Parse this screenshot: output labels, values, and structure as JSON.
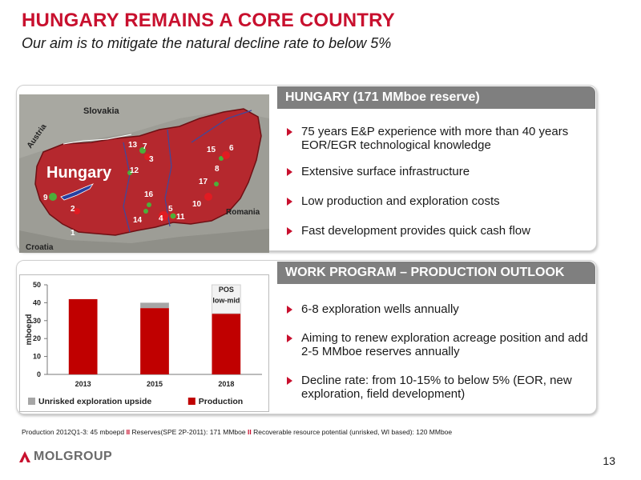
{
  "header": {
    "title": "HUNGARY REMAINS A CORE COUNTRY",
    "subtitle": "Our aim is to mitigate the natural decline rate to below 5%"
  },
  "hungary_panel": {
    "heading": "HUNGARY (171 MMboe reserve)",
    "bullets": [
      "75 years E&P experience with more than 40 years EOR/EGR technological knowledge",
      "Extensive surface infrastructure",
      "Low production and exploration costs",
      "Fast development provides quick cash flow"
    ]
  },
  "map": {
    "country_label": "Hungary",
    "neighbors": [
      "Slovakia",
      "Austria",
      "Romania",
      "Croatia"
    ],
    "site_numbers": [
      "1",
      "2",
      "3",
      "4",
      "5",
      "6",
      "7",
      "8",
      "9",
      "10",
      "11",
      "12",
      "13",
      "14",
      "15",
      "16",
      "17"
    ],
    "colors": {
      "country": "#b5282e",
      "field_green": "#4caf3a",
      "field_red": "#e11b22"
    }
  },
  "work_panel": {
    "heading": "WORK PROGRAM – PRODUCTION OUTLOOK",
    "bullets": [
      "6-8 exploration wells annually",
      "Aiming to renew exploration acreage position and add 2-5 MMboe reserves annually",
      "Decline rate: from 10-15% to below 5% (EOR, new exploration, field development)"
    ]
  },
  "chart_data": {
    "type": "bar",
    "stacked": true,
    "categories": [
      "2013",
      "2015",
      "2018"
    ],
    "series": [
      {
        "name": "Production",
        "color": "#c00000",
        "values": [
          42,
          37,
          34
        ]
      },
      {
        "name": "Unrisked exploration upside",
        "color": "#a6a6a6",
        "values": [
          0,
          3,
          0
        ]
      }
    ],
    "ylabel": "mboepd",
    "ylim": [
      0,
      50
    ],
    "yticks": [
      "0",
      "10",
      "20",
      "30",
      "40",
      "50"
    ],
    "annotation": "POS low-mid",
    "legend": "bottom"
  },
  "footnote": {
    "part1": "Production 2012Q1-3: 45 mboepd",
    "part2": "Reserves(SPE 2P-2011): 171 MMboe",
    "part3": "Recoverable resource potential (unrisked, WI based): 120 MMboe",
    "separator": "II"
  },
  "footer": {
    "logo_text": "MOLGROUP",
    "page_number": "13"
  }
}
